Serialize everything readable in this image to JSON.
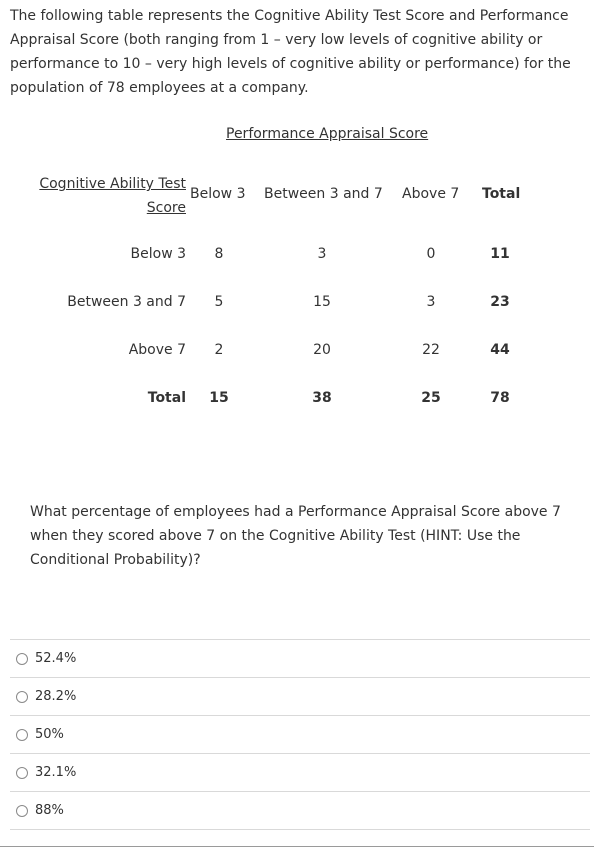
{
  "intro_text": "The following table represents the Cognitive Ability Test Score and Performance Appraisal Score (both ranging from 1 – very low levels of cognitive ability or performance to 10 – very high levels of cognitive ability or performance) for the population of 78 employees at a company.",
  "table": {
    "column_group_header": "Performance Appraisal Score",
    "row_group_header": "Cognitive Ability Test Score",
    "columns": [
      "Below 3",
      "Between 3 and 7",
      "Above 7",
      "Total"
    ],
    "rows": [
      {
        "label": "Below 3",
        "values": [
          "8",
          "3",
          "0",
          "11"
        ]
      },
      {
        "label": "Between 3 and 7",
        "values": [
          "5",
          "15",
          "3",
          "23"
        ]
      },
      {
        "label": "Above 7",
        "values": [
          "2",
          "20",
          "22",
          "44"
        ]
      },
      {
        "label": "Total",
        "values": [
          "15",
          "38",
          "25",
          "78"
        ]
      }
    ]
  },
  "question_text": "What percentage of employees had a Performance Appraisal Score above 7 when they scored above 7 on the Cognitive Ability Test (HINT: Use the Conditional Probability)?",
  "options": [
    "52.4%",
    "28.2%",
    "50%",
    "32.1%",
    "88%"
  ]
}
